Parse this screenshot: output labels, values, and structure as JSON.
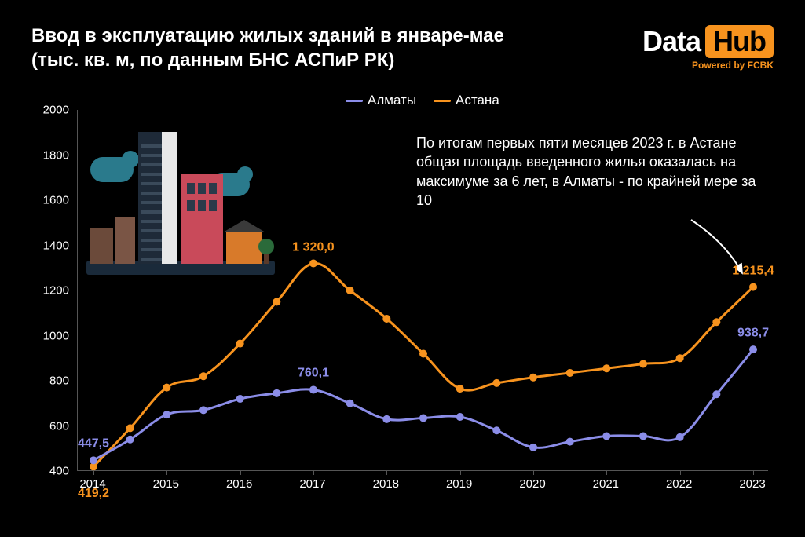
{
  "title_line1": "Ввод в эксплуатацию жилых зданий в январе-мае",
  "title_line2": "(тыс. кв. м, по данным БНС АСПиР РК)",
  "logo": {
    "part1": "Data",
    "part2": "Hub",
    "sub": "Powered by FCBK"
  },
  "legend": {
    "s1": {
      "label": "Алматы",
      "color": "#8b8de8"
    },
    "s2": {
      "label": "Астана",
      "color": "#f7931e"
    }
  },
  "annotation": "По итогам первых пяти месяцев 2023 г. в Астане общая площадь введенного жилья оказалась на максимуме за 6 лет, в Алматы - по крайней мере за 10",
  "chart": {
    "type": "line",
    "background_color": "#000000",
    "text_color": "#ffffff",
    "axis_color": "#555555",
    "ylim": [
      400,
      2000
    ],
    "ytick_step": 200,
    "yticks": [
      400,
      600,
      800,
      1000,
      1200,
      1400,
      1600,
      1800,
      2000
    ],
    "xlabels": [
      "2014",
      "2015",
      "2016",
      "2017",
      "2018",
      "2019",
      "2020",
      "2021",
      "2022",
      "2023"
    ],
    "series": {
      "almaty": {
        "color": "#8b8de8",
        "line_width": 3,
        "marker": "circle",
        "marker_size": 5,
        "values_half": [
          447.5,
          540,
          650,
          670,
          720,
          745,
          760.1,
          700,
          630,
          635,
          640,
          580,
          505,
          530,
          555,
          555,
          550,
          740,
          938.7
        ],
        "point_labels": [
          {
            "i": 0,
            "text": "447,5",
            "dy": -8
          },
          {
            "i": 6,
            "text": "760,1",
            "dy": -8
          },
          {
            "i": 18,
            "text": "938,7",
            "dy": -8
          }
        ]
      },
      "astana": {
        "color": "#f7931e",
        "line_width": 3,
        "marker": "circle",
        "marker_size": 5,
        "values_half": [
          419.2,
          590,
          770,
          820,
          965,
          1150,
          1320.0,
          1200,
          1075,
          920,
          765,
          790,
          815,
          835,
          855,
          875,
          900,
          1060,
          1215.4
        ],
        "point_labels": [
          {
            "i": 0,
            "text": "419,2",
            "dy": 26
          },
          {
            "i": 6,
            "text": "1 320,0",
            "dy": -8
          },
          {
            "i": 18,
            "text": "1 215,4",
            "dy": -8
          }
        ]
      }
    }
  }
}
